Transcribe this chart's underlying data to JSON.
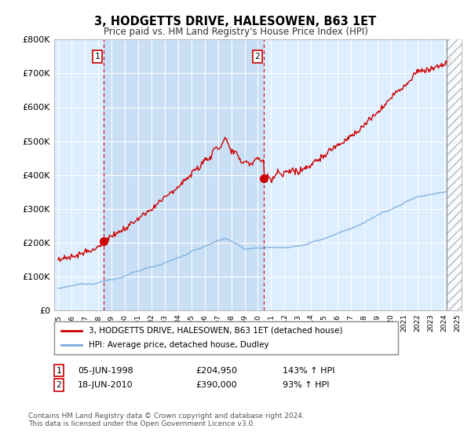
{
  "title": "3, HODGETTS DRIVE, HALESOWEN, B63 1ET",
  "subtitle": "Price paid vs. HM Land Registry's House Price Index (HPI)",
  "legend_line1": "3, HODGETTS DRIVE, HALESOWEN, B63 1ET (detached house)",
  "legend_line2": "HPI: Average price, detached house, Dudley",
  "footnote": "Contains HM Land Registry data © Crown copyright and database right 2024.\nThis data is licensed under the Open Government Licence v3.0.",
  "sale1_date": "05-JUN-1998",
  "sale1_price": "£204,950",
  "sale1_hpi": "143% ↑ HPI",
  "sale2_date": "18-JUN-2010",
  "sale2_price": "£390,000",
  "sale2_hpi": "93% ↑ HPI",
  "sale1_year": 1998.44,
  "sale1_value": 204950,
  "sale2_year": 2010.46,
  "sale2_value": 390000,
  "red_color": "#cc0000",
  "blue_color": "#7aacdc",
  "background_color": "#ddeeff",
  "background_color2": "#c8dff5",
  "ylim": [
    0,
    800000
  ],
  "xlim_start": 1994.7,
  "xlim_end": 2025.3,
  "hatch_start": 2024.17
}
